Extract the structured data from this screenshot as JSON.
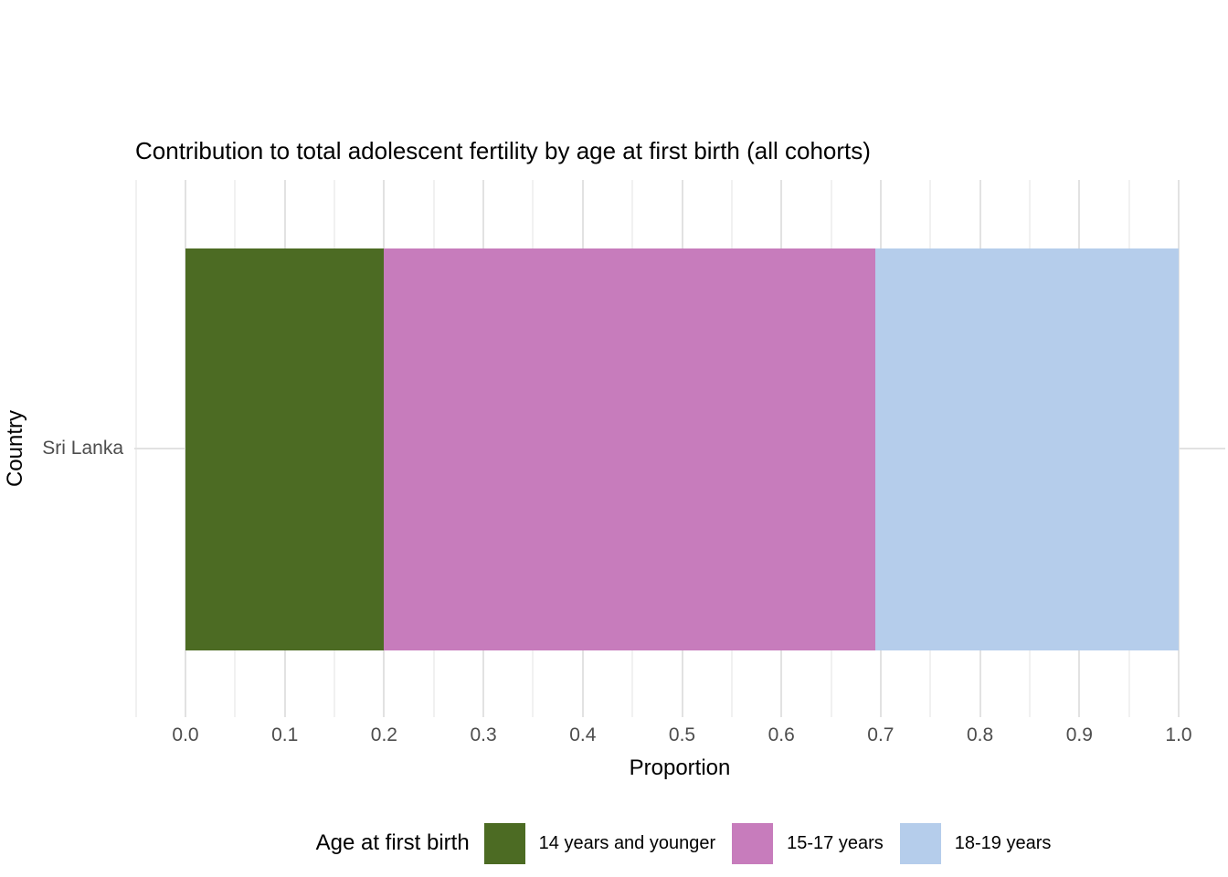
{
  "chart_data": {
    "type": "bar",
    "orientation": "horizontal",
    "stacked": true,
    "title": "Contribution to total adolescent fertility by age at first birth (all cohorts)",
    "xlabel": "Proportion",
    "ylabel": "Country",
    "categories": [
      "Sri Lanka"
    ],
    "series": [
      {
        "name": "14 years and younger",
        "values": [
          0.2
        ],
        "color": "#4c6b23"
      },
      {
        "name": "15-17 years",
        "values": [
          0.495
        ],
        "color": "#c77cbc"
      },
      {
        "name": "18-19 years",
        "values": [
          0.305
        ],
        "color": "#b5cdeb"
      }
    ],
    "xlim": [
      0,
      1
    ],
    "x_major_ticks": [
      0,
      0.1,
      0.2,
      0.3,
      0.4,
      0.5,
      0.6,
      0.7,
      0.8,
      0.9,
      1.0
    ],
    "x_tick_labels": [
      "0.0",
      "0.1",
      "0.2",
      "0.3",
      "0.4",
      "0.5",
      "0.6",
      "0.7",
      "0.8",
      "0.9",
      "1.0"
    ],
    "x_minor_tick_step": 0.05,
    "grid": "vertical major and minor gridlines, horizontal major gridline at category",
    "legend_position": "bottom"
  },
  "legend": {
    "title": "Age at first birth"
  },
  "style_colors": {
    "background": "#ffffff",
    "grid_major": "#e2e2e2",
    "grid_minor": "#f1f1f1",
    "tick_label": "#4d4d4d",
    "text": "#000000"
  }
}
